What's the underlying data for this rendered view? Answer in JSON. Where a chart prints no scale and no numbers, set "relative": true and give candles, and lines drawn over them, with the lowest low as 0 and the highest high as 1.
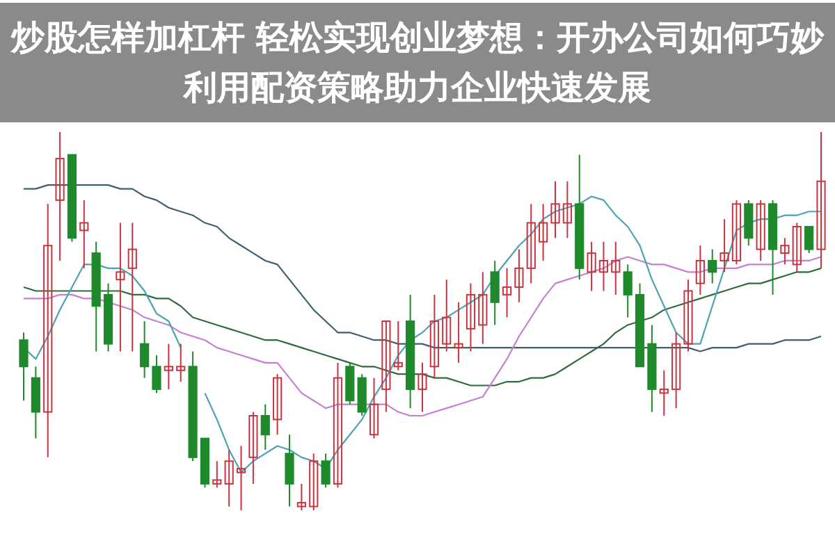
{
  "chart_data": {
    "type": "candlestick",
    "relative": true,
    "title": "炒股怎样加杠杆 轻松实现创业梦想：开办公司如何巧妙利用配资策略助力企业快速发展",
    "categories": [
      null,
      null,
      null,
      null,
      null,
      null,
      null,
      null,
      null,
      null,
      null,
      null,
      null,
      null,
      null,
      null,
      null,
      null,
      null,
      null,
      null,
      null,
      null,
      null,
      null,
      null,
      null,
      null,
      null,
      null,
      null,
      null,
      null,
      null,
      null,
      null,
      null,
      null,
      null,
      null,
      null,
      null,
      null,
      null,
      null,
      null,
      null,
      null,
      null,
      null,
      null,
      null,
      null,
      null,
      null,
      null,
      null,
      null,
      null,
      null,
      null,
      null,
      null,
      null,
      null,
      null,
      null
    ],
    "ohlc": [
      [
        0.45,
        0.47,
        0.29,
        0.38
      ],
      [
        0.35,
        0.38,
        0.19,
        0.26
      ],
      [
        0.26,
        0.81,
        0.14,
        0.7
      ],
      [
        0.82,
        1,
        0.66,
        0.93
      ],
      [
        0.94,
        0.94,
        0.71,
        0.72
      ],
      [
        0.74,
        0.82,
        0.64,
        0.76
      ],
      [
        0.68,
        0.71,
        0.42,
        0.54
      ],
      [
        0.57,
        0.6,
        0.42,
        0.44
      ],
      [
        0.61,
        0.76,
        0.42,
        0.63
      ],
      [
        0.64,
        0.76,
        0.42,
        0.69
      ],
      [
        0.44,
        0.5,
        0.35,
        0.38
      ],
      [
        0.38,
        0.41,
        0.31,
        0.32
      ],
      [
        0.37,
        0.44,
        0.32,
        0.38
      ],
      [
        0.37,
        0.44,
        0.34,
        0.38
      ],
      [
        0.38,
        0.42,
        0.13,
        0.14
      ],
      [
        0.19,
        0.19,
        0.06,
        0.07
      ],
      [
        0.07,
        0.13,
        0.06,
        0.08
      ],
      [
        0.07,
        0.16,
        0.01,
        0.13
      ],
      [
        0.1,
        0.17,
        0,
        0.11
      ],
      [
        0.14,
        0.26,
        0.07,
        0.25
      ],
      [
        0.25,
        0.28,
        0.16,
        0.2
      ],
      [
        0.24,
        0.36,
        0.2,
        0.35
      ],
      [
        0.15,
        0.2,
        0.01,
        0.07
      ],
      [
        0.01,
        0.07,
        0,
        0.02
      ],
      [
        0.01,
        0.15,
        0,
        0.13
      ],
      [
        0.13,
        0.15,
        0.06,
        0.07
      ],
      [
        0.07,
        0.39,
        0.06,
        0.35
      ],
      [
        0.38,
        0.39,
        0.28,
        0.29
      ],
      [
        0.35,
        0.36,
        0.25,
        0.26
      ],
      [
        0.2,
        0.35,
        0.19,
        0.28
      ],
      [
        0.32,
        0.5,
        0.26,
        0.5
      ],
      [
        0.38,
        0.5,
        0.37,
        0.39
      ],
      [
        0.5,
        0.57,
        0.27,
        0.32
      ],
      [
        0.32,
        0.39,
        0.26,
        0.36
      ],
      [
        0.38,
        0.57,
        0.35,
        0.5
      ],
      [
        0.44,
        0.61,
        0.42,
        0.51
      ],
      [
        0.43,
        0.55,
        0.39,
        0.44
      ],
      [
        0.48,
        0.6,
        0.42,
        0.57
      ],
      [
        0.49,
        0.63,
        0.44,
        0.57
      ],
      [
        0.63,
        0.66,
        0.49,
        0.55
      ],
      [
        0.57,
        0.64,
        0.51,
        0.59
      ],
      [
        0.59,
        0.69,
        0.55,
        0.64
      ],
      [
        0.64,
        0.81,
        0.6,
        0.76
      ],
      [
        0.71,
        0.81,
        0.66,
        0.76
      ],
      [
        0.76,
        0.87,
        0.72,
        0.81
      ],
      [
        0.76,
        0.87,
        0.72,
        0.81
      ],
      [
        0.81,
        0.94,
        0.61,
        0.64
      ],
      [
        0.63,
        0.71,
        0.58,
        0.68
      ],
      [
        0.63,
        0.71,
        0.58,
        0.66
      ],
      [
        0.63,
        0.71,
        0.57,
        0.66
      ],
      [
        0.63,
        0.65,
        0.51,
        0.57
      ],
      [
        0.57,
        0.6,
        0.38,
        0.38
      ],
      [
        0.44,
        0.49,
        0.26,
        0.32
      ],
      [
        0.31,
        0.37,
        0.25,
        0.32
      ],
      [
        0.32,
        0.47,
        0.27,
        0.44
      ],
      [
        0.44,
        0.61,
        0.42,
        0.58
      ],
      [
        0.6,
        0.7,
        0.57,
        0.66
      ],
      [
        0.66,
        0.69,
        0.6,
        0.63
      ],
      [
        0.66,
        0.77,
        0.63,
        0.68
      ],
      [
        0.66,
        0.82,
        0.65,
        0.81
      ],
      [
        0.81,
        0.82,
        0.7,
        0.72
      ],
      [
        0.69,
        0.82,
        0.66,
        0.81
      ],
      [
        0.81,
        0.82,
        0.57,
        0.69
      ],
      [
        0.68,
        0.72,
        0.65,
        0.7
      ],
      [
        0.65,
        0.76,
        0.63,
        0.75
      ],
      [
        0.75,
        0.75,
        0.68,
        0.69
      ],
      [
        0.69,
        1,
        0.64,
        0.87
      ]
    ],
    "series": [
      {
        "type": "line",
        "color": "#3d5f6e",
        "values": [
          0.85,
          0.85,
          0.86,
          0.86,
          0.86,
          0.86,
          0.86,
          0.86,
          0.85,
          0.85,
          0.83,
          0.82,
          0.8,
          0.79,
          0.78,
          0.76,
          0.75,
          0.72,
          0.7,
          0.68,
          0.66,
          0.65,
          0.61,
          0.57,
          0.53,
          0.5,
          0.47,
          0.47,
          0.46,
          0.45,
          0.45,
          0.44,
          0.44,
          0.44,
          0.43,
          0.43,
          0.43,
          0.43,
          0.43,
          0.43,
          0.43,
          0.43,
          0.43,
          0.43,
          0.43,
          0.43,
          0.43,
          0.43,
          0.43,
          0.43,
          0.43,
          0.43,
          0.43,
          0.43,
          0.43,
          0.43,
          0.42,
          0.43,
          0.43,
          0.43,
          0.44,
          0.44,
          0.44,
          0.45,
          0.45,
          0.45,
          0.46
        ]
      },
      {
        "type": "line",
        "color": "#2f6b3c",
        "values": [
          0.59,
          0.58,
          0.58,
          0.58,
          0.58,
          0.58,
          0.58,
          0.58,
          0.58,
          0.57,
          0.57,
          0.56,
          0.56,
          0.54,
          0.51,
          0.5,
          0.49,
          0.48,
          0.47,
          0.46,
          0.45,
          0.45,
          0.44,
          0.43,
          0.42,
          0.41,
          0.4,
          0.39,
          0.38,
          0.38,
          0.37,
          0.36,
          0.36,
          0.36,
          0.35,
          0.35,
          0.34,
          0.33,
          0.33,
          0.33,
          0.34,
          0.34,
          0.35,
          0.35,
          0.36,
          0.38,
          0.4,
          0.42,
          0.44,
          0.47,
          0.49,
          0.5,
          0.51,
          0.53,
          0.54,
          0.55,
          0.56,
          0.57,
          0.58,
          0.59,
          0.6,
          0.6,
          0.61,
          0.62,
          0.63,
          0.63,
          0.64
        ]
      },
      {
        "type": "line",
        "color": "#c77fcf",
        "values": [
          0.56,
          0.56,
          0.56,
          0.57,
          0.57,
          0.56,
          0.56,
          0.55,
          0.54,
          0.53,
          0.51,
          0.5,
          0.49,
          0.47,
          0.46,
          0.45,
          0.43,
          0.42,
          0.41,
          0.4,
          0.39,
          0.39,
          0.35,
          0.31,
          0.29,
          0.27,
          0.28,
          0.28,
          0.28,
          0.28,
          0.28,
          0.26,
          0.25,
          0.25,
          0.26,
          0.27,
          0.28,
          0.29,
          0.3,
          0.35,
          0.4,
          0.46,
          0.51,
          0.56,
          0.6,
          0.61,
          0.62,
          0.63,
          0.64,
          0.66,
          0.67,
          0.66,
          0.65,
          0.65,
          0.64,
          0.63,
          0.63,
          0.64,
          0.64,
          0.64,
          0.65,
          0.65,
          0.65,
          0.66,
          0.66,
          0.66,
          0.67
        ]
      },
      {
        "type": "line",
        "color": "#4aa3b3",
        "values": [
          0.43,
          0.4,
          0.46,
          0.53,
          0.59,
          0.65,
          0.65,
          0.64,
          0.64,
          0.62,
          0.58,
          0.52,
          0.5,
          0.43,
          null,
          0.31,
          0.24,
          0.16,
          0.1,
          0.13,
          0.15,
          0.17,
          0.16,
          0.14,
          0.13,
          0.11,
          0.16,
          0.2,
          0.24,
          0.3,
          0.35,
          0.41,
          0.45,
          0.47,
          0.5,
          0.51,
          0.53,
          0.55,
          0.57,
          0.62,
          0.66,
          0.7,
          0.73,
          0.77,
          0.79,
          0.8,
          0.81,
          0.83,
          0.82,
          0.78,
          0.75,
          0.7,
          0.61,
          0.54,
          0.47,
          0.44,
          0.44,
          0.54,
          0.64,
          0.74,
          0.76,
          0.77,
          0.77,
          0.78,
          0.78,
          0.79,
          0.79
        ]
      }
    ]
  }
}
